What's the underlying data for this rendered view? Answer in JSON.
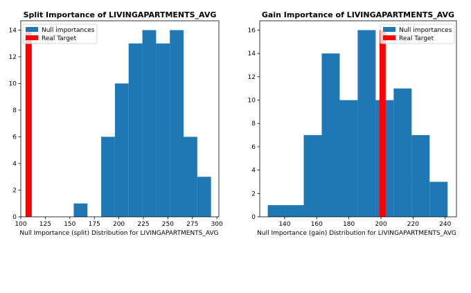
{
  "chart_data": [
    {
      "type": "bar",
      "title": "Split Importance of LIVINGAPARTMENTS_AVG",
      "xlabel": "Null Importance (split) Distribution for LIVINGAPARTMENTS_AVG",
      "ylabel": "",
      "xlim": [
        100,
        302
      ],
      "ylim": [
        0,
        14.7
      ],
      "xticks": [
        100,
        125,
        150,
        175,
        200,
        225,
        250,
        275,
        300
      ],
      "yticks": [
        0,
        2,
        4,
        6,
        8,
        10,
        12,
        14
      ],
      "legend": {
        "position": "top-left",
        "entries": [
          "Null importances",
          "Real Target"
        ]
      },
      "series": [
        {
          "name": "Null importances",
          "color": "#1f77b4",
          "bins": [
            {
              "x0": 154,
              "x1": 168,
              "value": 1
            },
            {
              "x0": 182,
              "x1": 196,
              "value": 6
            },
            {
              "x0": 196,
              "x1": 210,
              "value": 10
            },
            {
              "x0": 210,
              "x1": 224,
              "value": 13
            },
            {
              "x0": 224,
              "x1": 238,
              "value": 14
            },
            {
              "x0": 238,
              "x1": 252,
              "value": 13
            },
            {
              "x0": 252,
              "x1": 266,
              "value": 14
            },
            {
              "x0": 266,
              "x1": 280,
              "value": 6
            },
            {
              "x0": 280,
              "x1": 294,
              "value": 3
            }
          ]
        },
        {
          "name": "Real Target",
          "color": "#ff0000",
          "x": 108,
          "value": 14
        }
      ]
    },
    {
      "type": "bar",
      "title": "Gain Importance of LIVINGAPARTMENTS_AVG",
      "xlabel": "Null Importance (gain) Distribution for LIVINGAPARTMENTS_AVG",
      "ylabel": "",
      "xlim": [
        124.5,
        247
      ],
      "ylim": [
        0,
        16.8
      ],
      "xticks": [
        140,
        160,
        180,
        200,
        220,
        240
      ],
      "yticks": [
        0,
        2,
        4,
        6,
        8,
        10,
        12,
        14,
        16
      ],
      "legend": {
        "position": "top-right",
        "entries": [
          "Null importances",
          "Real Target"
        ]
      },
      "series": [
        {
          "name": "Null importances",
          "color": "#1f77b4",
          "bins": [
            {
              "x0": 129.5,
              "x1": 140.7,
              "value": 1
            },
            {
              "x0": 140.7,
              "x1": 151.9,
              "value": 1
            },
            {
              "x0": 151.9,
              "x1": 163.1,
              "value": 7
            },
            {
              "x0": 163.1,
              "x1": 174.3,
              "value": 14
            },
            {
              "x0": 174.3,
              "x1": 185.5,
              "value": 10
            },
            {
              "x0": 185.5,
              "x1": 196.7,
              "value": 16
            },
            {
              "x0": 196.7,
              "x1": 207.9,
              "value": 10
            },
            {
              "x0": 207.9,
              "x1": 219.1,
              "value": 11
            },
            {
              "x0": 219.1,
              "x1": 230.3,
              "value": 7
            },
            {
              "x0": 230.3,
              "x1": 241.5,
              "value": 3
            }
          ]
        },
        {
          "name": "Real Target",
          "color": "#ff0000",
          "x": 201,
          "value": 16
        }
      ]
    }
  ]
}
